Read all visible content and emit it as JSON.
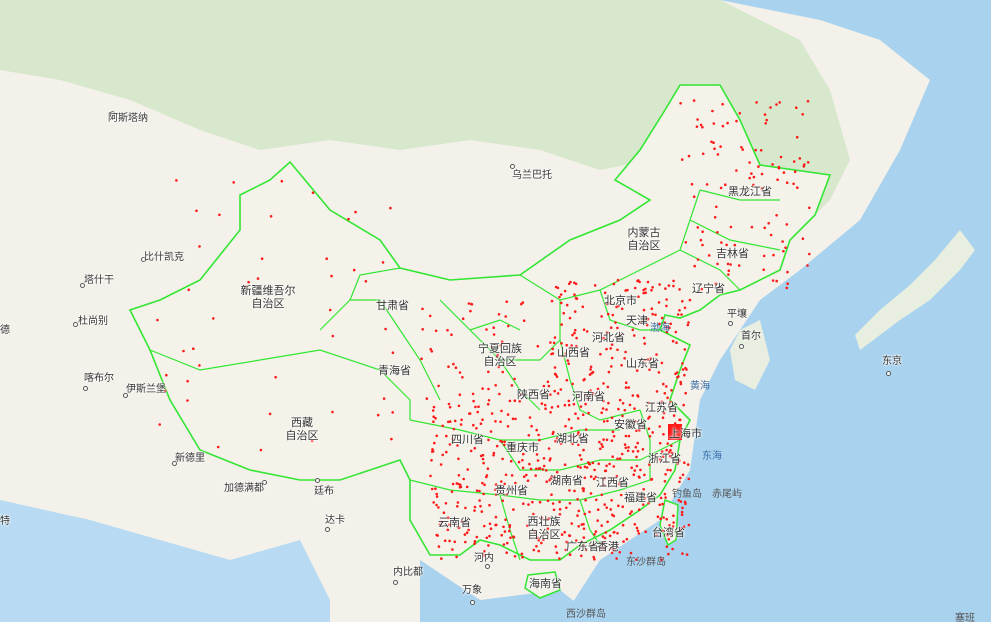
{
  "colors": {
    "land": "#f3f1ea",
    "forest": "#cfe6c5",
    "sea": "#a9d2ef",
    "border": "#33e633",
    "point": "#ff1a1a"
  },
  "provinces": {
    "xinjiang": "新疆维吾尔\n自治区",
    "xizang": "西藏\n自治区",
    "qinghai": "青海省",
    "gansu": "甘肃省",
    "neimenggu": "内蒙古\n自治区",
    "heilongjiang": "黑龙江省",
    "jilin": "吉林省",
    "liaoning": "辽宁省",
    "beijing": "北京市",
    "tianjin": "天津",
    "hebei": "河北省",
    "shanxi": "山西省",
    "shandong": "山东省",
    "ningxia": "宁夏回族\n自治区",
    "shaanxi": "陕西省",
    "henan": "河南省",
    "jiangsu": "江苏省",
    "anhui": "安徽省",
    "shanghai": "上海市",
    "sichuan": "四川省",
    "chongqing": "重庆市",
    "hubei": "湖北省",
    "zhejiang": "浙江省",
    "guizhou": "贵州省",
    "hunan": "湖南省",
    "jiangxi": "江西省",
    "fujian": "福建省",
    "yunnan": "云南省",
    "guangxi": "西壮族\n自治区",
    "guangdong": "广东省",
    "taiwan": "台湾省",
    "hainan": "海南省",
    "hongkong": "香港"
  },
  "cities": {
    "astana": "阿斯塔纳",
    "bishkek": "比什凯克",
    "tashkent": "塔什干",
    "dushanbe": "杜尚别",
    "kabul": "喀布尔",
    "islamabad": "伊斯兰堡",
    "newdelhi": "新德里",
    "kathmandu": "加德满都",
    "thimphu": "廷布",
    "dhaka": "达卡",
    "ulaanbaatar": "乌兰巴托",
    "pyongyang": "平壤",
    "seoul": "首尔",
    "tokyo": "东京",
    "hanoi": "河内",
    "naypyidaw": "内比都",
    "vientiane": "万象",
    "de": "德",
    "te": "特"
  },
  "seas": {
    "bohai": "渤海",
    "huanghai": "黄海",
    "donghai": "东海",
    "diaoyu": "钓鱼岛",
    "chiwei": "赤尾屿",
    "dongsha": "东沙群岛",
    "xisha": "西沙群岛",
    "saiban": "塞班"
  }
}
